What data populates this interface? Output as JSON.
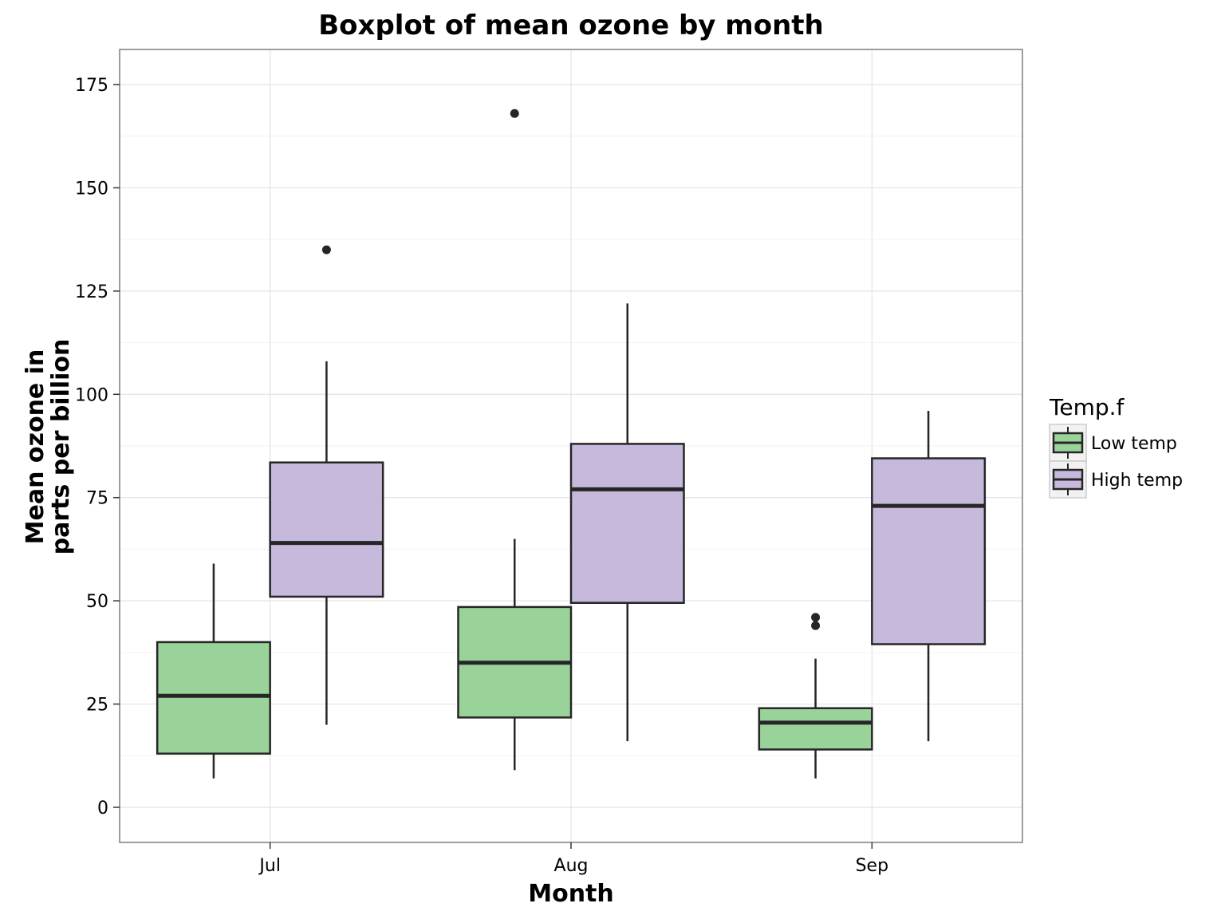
{
  "chart_data": {
    "type": "boxplot",
    "title": "Boxplot of mean ozone by month",
    "xlabel": "Month",
    "ylabel_lines": [
      "Mean ozone in",
      "parts per billion"
    ],
    "categories": [
      "Jul",
      "Aug",
      "Sep"
    ],
    "ylim": [
      -8.5,
      183.5
    ],
    "yticks": [
      0,
      25,
      50,
      75,
      100,
      125,
      150,
      175
    ],
    "grid": true,
    "legend": {
      "title": "Temp.f",
      "position": "right"
    },
    "series": [
      {
        "name": "Low temp",
        "color": "#9ad39a",
        "boxes": [
          {
            "category": "Jul",
            "whisker_low": 7,
            "q1": 13,
            "median": 27,
            "q3": 40,
            "whisker_high": 59,
            "outliers": []
          },
          {
            "category": "Aug",
            "whisker_low": 9,
            "q1": 21.75,
            "median": 35,
            "q3": 48.5,
            "whisker_high": 65,
            "outliers": [
              168
            ]
          },
          {
            "category": "Sep",
            "whisker_low": 7,
            "q1": 14,
            "median": 20.5,
            "q3": 24,
            "whisker_high": 36,
            "outliers": [
              44,
              46
            ]
          }
        ]
      },
      {
        "name": "High temp",
        "color": "#c7b9dc",
        "boxes": [
          {
            "category": "Jul",
            "whisker_low": 20,
            "q1": 51,
            "median": 64,
            "q3": 83.5,
            "whisker_high": 108,
            "outliers": [
              135
            ]
          },
          {
            "category": "Aug",
            "whisker_low": 16,
            "q1": 49.5,
            "median": 77,
            "q3": 88,
            "whisker_high": 122,
            "outliers": []
          },
          {
            "category": "Sep",
            "whisker_low": 16,
            "q1": 39.5,
            "median": 73,
            "q3": 84.5,
            "whisker_high": 96,
            "outliers": []
          }
        ]
      }
    ]
  }
}
